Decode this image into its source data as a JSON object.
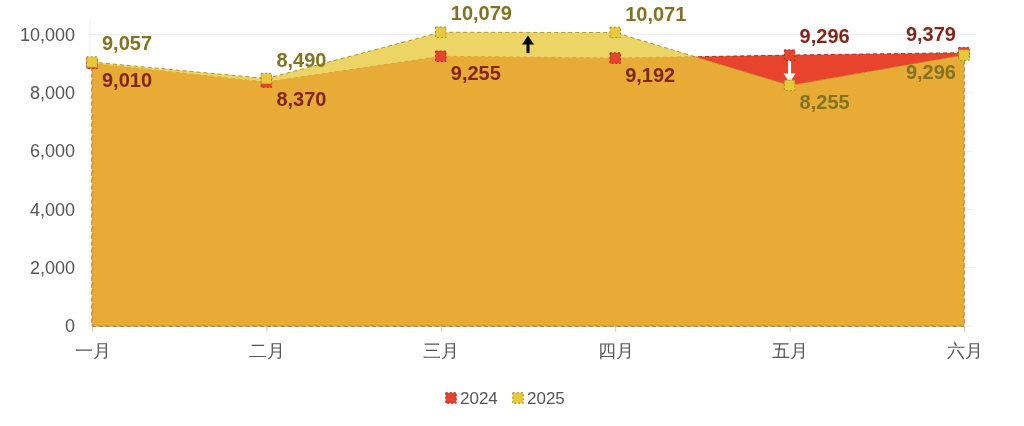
{
  "chart_data": {
    "type": "area",
    "categories": [
      "一月",
      "二月",
      "三月",
      "四月",
      "五月",
      "六月"
    ],
    "series": [
      {
        "name": "2024",
        "color": "#e8432c",
        "values": [
          9010,
          8370,
          9255,
          9192,
          9296,
          9379
        ],
        "value_labels": [
          "9,010",
          "8,370",
          "9,255",
          "9,192",
          "9,296",
          "9,379"
        ]
      },
      {
        "name": "2025",
        "color": "#e8c93a",
        "values": [
          9057,
          8490,
          10079,
          10071,
          8255,
          9296
        ],
        "value_labels": [
          "9,057",
          "8,490",
          "10,079",
          "10,071",
          "8,255",
          "9,296"
        ]
      }
    ],
    "ylim": [
      0,
      10500
    ],
    "yticks": [
      0,
      {
        "value": 2000,
        "label": "2,000"
      },
      {
        "value": 4000,
        "label": "4,000"
      },
      {
        "value": 6000,
        "label": "6,000"
      },
      {
        "value": 8000,
        "label": "8,000"
      },
      {
        "value": 10000,
        "label": "10,000"
      }
    ],
    "grid": "y",
    "legend": "bottom",
    "marker": "square",
    "line_style": "dashed"
  }
}
